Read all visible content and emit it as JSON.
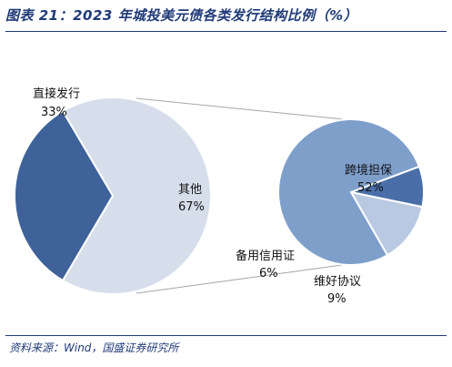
{
  "header": {
    "title": "图表 21：2023 年城投美元债各类发行结构比例（%）"
  },
  "footer": {
    "source": "资料来源：Wind，国盛证券研究所"
  },
  "colors": {
    "accent": "#1f3a78",
    "dark_blue": "#3e6299",
    "light_grey_blue": "#d6deeb",
    "mid_blue": "#7f9fcb",
    "deep_blue": "#4a6fa8",
    "pale_blue": "#b9c9e2",
    "connector": "#a6a6a6"
  },
  "chart_data": {
    "type": "pie",
    "title": "",
    "main_pie": {
      "slices": [
        {
          "name": "直接发行",
          "value": 33,
          "label": "33%"
        },
        {
          "name": "其他",
          "value": 67,
          "label": "67%"
        }
      ]
    },
    "breakdown_pie": {
      "parent": "其他",
      "slices": [
        {
          "name": "跨境担保",
          "value": 52,
          "label": "52%"
        },
        {
          "name": "备用信用证",
          "value": 6,
          "label": "6%"
        },
        {
          "name": "维好协议",
          "value": 9,
          "label": "9%"
        }
      ]
    }
  }
}
